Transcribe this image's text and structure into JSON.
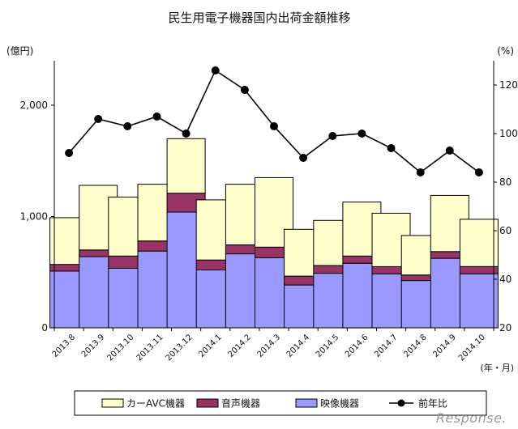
{
  "chart_data": {
    "type": "bar",
    "stacked": true,
    "title": "民生用電子機器国内出荷金額推移",
    "y_left_unit": "(億円)",
    "y_right_unit": "(%)",
    "x_unit": "(年・月)",
    "categories": [
      "2013.8",
      "2013.9",
      "2013.10",
      "2013.11",
      "2013.12",
      "2014.1",
      "2014.2",
      "2014.3",
      "2014.4",
      "2014.5",
      "2014.6",
      "2014.7",
      "2014.8",
      "2014.9",
      "2014.10"
    ],
    "ylim_left": [
      0,
      2400
    ],
    "yticks_left": [
      {
        "value": 0,
        "label": "0"
      },
      {
        "value": 1000,
        "label": "1,000"
      },
      {
        "value": 2000,
        "label": "2,000"
      }
    ],
    "ylim_right": [
      20,
      130
    ],
    "yticks_right": [
      {
        "value": 20,
        "label": "20"
      },
      {
        "value": 40,
        "label": "40"
      },
      {
        "value": 60,
        "label": "60"
      },
      {
        "value": 80,
        "label": "80"
      },
      {
        "value": 100,
        "label": "100"
      },
      {
        "value": 120,
        "label": "120"
      }
    ],
    "grid": false,
    "legend_position": "bottom",
    "series": [
      {
        "name": "映像機器",
        "axis": "left",
        "kind": "bar",
        "color": "#9999ff",
        "values": [
          510,
          640,
          535,
          690,
          1040,
          520,
          665,
          630,
          385,
          490,
          580,
          485,
          425,
          625,
          485
        ]
      },
      {
        "name": "音声機器",
        "axis": "left",
        "kind": "bar",
        "color": "#993366",
        "values": [
          60,
          60,
          110,
          90,
          170,
          90,
          80,
          95,
          80,
          70,
          65,
          65,
          50,
          60,
          65
        ]
      },
      {
        "name": "カーAVC機器",
        "axis": "left",
        "kind": "bar",
        "color": "#ffffcc",
        "values": [
          420,
          580,
          530,
          510,
          490,
          540,
          545,
          625,
          420,
          405,
          485,
          480,
          355,
          505,
          425
        ]
      },
      {
        "name": "前年比",
        "axis": "right",
        "kind": "line",
        "color": "#000000",
        "values": [
          92,
          106,
          103,
          107,
          100,
          126,
          118,
          103,
          90,
          99,
          100,
          94,
          84,
          93,
          84
        ]
      }
    ],
    "legend": [
      {
        "name": "カーAVC機器",
        "swatch": "box",
        "color": "#ffffcc"
      },
      {
        "name": "音声機器",
        "swatch": "box",
        "color": "#993366"
      },
      {
        "name": "映像機器",
        "swatch": "box",
        "color": "#9999ff"
      },
      {
        "name": "前年比",
        "swatch": "line",
        "color": "#000000"
      }
    ]
  },
  "watermark": "Response."
}
